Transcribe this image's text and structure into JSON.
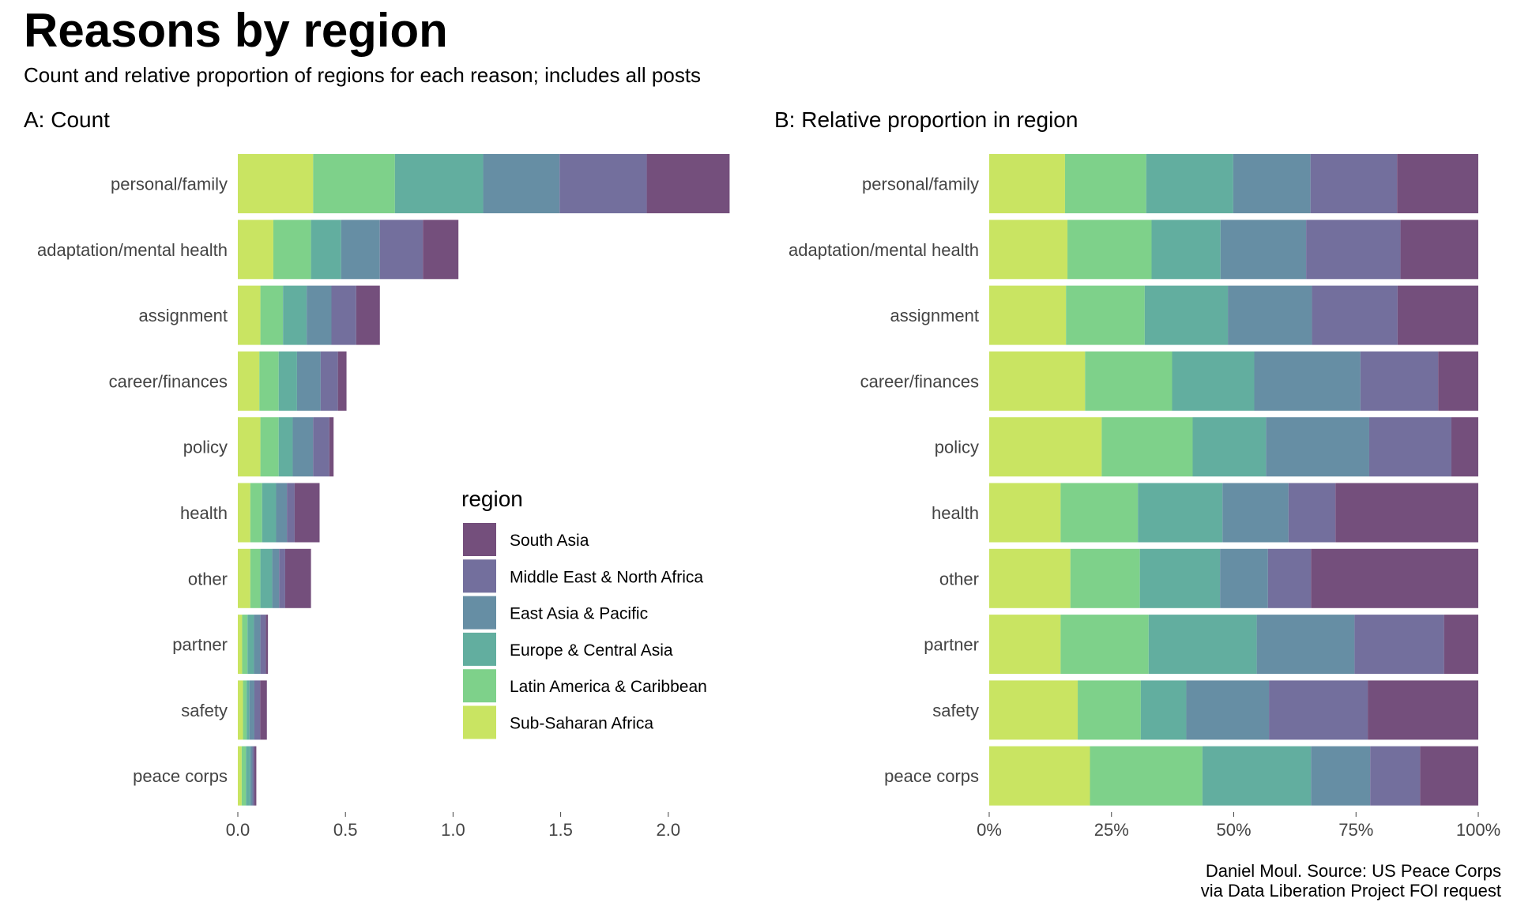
{
  "title": "Reasons by region",
  "subtitle": "Count and relative proportion of regions for each reason; includes all posts",
  "caption_line1": "Daniel Moul. Source: US Peace Corps",
  "caption_line2": "via Data Liberation Project FOI request",
  "legend": {
    "title": "region",
    "items": [
      "South Asia",
      "Middle East & North Africa",
      "East Asia & Pacific",
      "Europe & Central Asia",
      "Latin America & Caribbean",
      "Sub-Saharan Africa"
    ]
  },
  "colors": {
    "Sub-Saharan Africa": "#c9e462",
    "Latin America & Caribbean": "#7ed18a",
    "Europe & Central Asia": "#62ae9f",
    "East Asia & Pacific": "#668ea4",
    "Middle East & North Africa": "#736f9d",
    "South Asia": "#744f7c"
  },
  "chart_data": [
    {
      "type": "bar",
      "orientation": "horizontal",
      "stacked": true,
      "title": "A: Count",
      "xlim": [
        0,
        2.3
      ],
      "ticks": [
        0,
        0.5,
        1,
        1.5,
        2
      ],
      "tick_labels": [
        "0.0",
        "0.5",
        "1.0",
        "1.5",
        "2.0"
      ],
      "categories": [
        "personal/family",
        "adaptation/mental health",
        "assignment",
        "career/finances",
        "policy",
        "health",
        "other",
        "partner",
        "safety",
        "peace corps"
      ],
      "series": [
        {
          "name": "Sub-Saharan Africa",
          "values": [
            0.35,
            0.165,
            0.105,
            0.1,
            0.105,
            0.058,
            0.058,
            0.02,
            0.024,
            0.018
          ]
        },
        {
          "name": "Latin America & Caribbean",
          "values": [
            0.38,
            0.175,
            0.105,
            0.09,
            0.085,
            0.055,
            0.047,
            0.025,
            0.017,
            0.02
          ]
        },
        {
          "name": "Europe & Central Asia",
          "values": [
            0.41,
            0.14,
            0.11,
            0.085,
            0.065,
            0.065,
            0.055,
            0.03,
            0.013,
            0.02
          ]
        },
        {
          "name": "East Asia & Pacific",
          "values": [
            0.355,
            0.18,
            0.115,
            0.11,
            0.095,
            0.05,
            0.032,
            0.03,
            0.023,
            0.01
          ]
        },
        {
          "name": "Middle East & North Africa",
          "values": [
            0.405,
            0.2,
            0.115,
            0.08,
            0.075,
            0.036,
            0.028,
            0.025,
            0.027,
            0.009
          ]
        },
        {
          "name": "South Asia",
          "values": [
            0.385,
            0.165,
            0.11,
            0.04,
            0.02,
            0.116,
            0.12,
            0.01,
            0.031,
            0.009
          ]
        }
      ]
    },
    {
      "type": "bar",
      "orientation": "horizontal",
      "stacked": true,
      "title": "B: Relative proportion in region",
      "xlim": [
        0,
        100
      ],
      "ticks": [
        0,
        25,
        50,
        75,
        100
      ],
      "tick_labels": [
        "0%",
        "25%",
        "50%",
        "75%",
        "100%"
      ],
      "categories": [
        "personal/family",
        "adaptation/mental health",
        "assignment",
        "career/finances",
        "policy",
        "health",
        "other",
        "partner",
        "safety",
        "peace corps"
      ],
      "series": [
        {
          "name": "Sub-Saharan Africa",
          "values": [
            15.5,
            16.0,
            15.7,
            19.6,
            23.0,
            14.6,
            16.6,
            14.6,
            18.1,
            20.6
          ]
        },
        {
          "name": "Latin America & Caribbean",
          "values": [
            16.6,
            17.2,
            16.1,
            17.8,
            18.6,
            15.8,
            14.2,
            18.0,
            12.9,
            23.0
          ]
        },
        {
          "name": "Europe & Central Asia",
          "values": [
            17.8,
            14.1,
            17.0,
            16.8,
            15.0,
            17.3,
            16.4,
            22.1,
            9.3,
            22.2
          ]
        },
        {
          "name": "East Asia & Pacific",
          "values": [
            15.8,
            17.5,
            17.2,
            21.7,
            21.1,
            13.5,
            9.8,
            20.0,
            16.9,
            12.1
          ]
        },
        {
          "name": "Middle East & North Africa",
          "values": [
            17.7,
            19.3,
            17.5,
            15.9,
            16.8,
            9.6,
            8.8,
            18.3,
            20.2,
            10.2
          ]
        },
        {
          "name": "South Asia",
          "values": [
            16.6,
            15.9,
            16.5,
            8.2,
            5.5,
            29.2,
            34.2,
            7.0,
            22.6,
            11.9
          ]
        }
      ]
    }
  ]
}
